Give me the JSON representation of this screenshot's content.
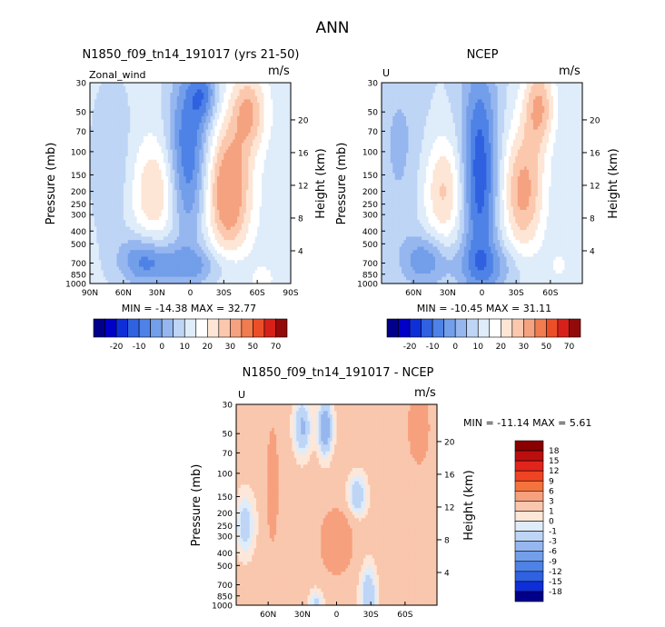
{
  "figure": {
    "main_title": "ANN",
    "colorbar1_ticks": [
      "-20",
      "-10",
      "0",
      "10",
      "20",
      "30",
      "50",
      "70"
    ],
    "colorbar3_ticks": [
      "18",
      "15",
      "12",
      "9",
      "6",
      "3",
      "1",
      "0",
      "-1",
      "-3",
      "-6",
      "-9",
      "-12",
      "-15",
      "-18"
    ]
  },
  "colors": {
    "full_scale": [
      "#00008a",
      "#0000c8",
      "#0e2fd8",
      "#2f61e0",
      "#4f82e6",
      "#739ee9",
      "#96b6ef",
      "#bed5f5",
      "#dfecfa",
      "#ffffff",
      "#fde6d6",
      "#fbc8ae",
      "#f5a280",
      "#f07c50",
      "#ec4f27",
      "#d7201a",
      "#930a0a"
    ],
    "diff_scale": [
      "#8a0000",
      "#bb0f0f",
      "#e2251c",
      "#ef4423",
      "#f4733c",
      "#f7a07e",
      "#f9c7ad",
      "#fde7d9",
      "#dfecfa",
      "#bed5f5",
      "#96b6ef",
      "#739ee9",
      "#4f82e6",
      "#2f61e0",
      "#0e2fd8",
      "#00008a"
    ]
  },
  "chart_data": [
    {
      "type": "heatmap",
      "title": "N1850_f09_tn14_191017 (yrs 21-50)",
      "left_label": "Zonal_wind",
      "units": "m/s",
      "ylabel": "Pressure (mb)",
      "right_label": "Height (km)",
      "x_ticks": [
        "90N",
        "60N",
        "30N",
        "0",
        "30S",
        "60S",
        "90S"
      ],
      "y_ticks": [
        "30",
        "50",
        "70",
        "100",
        "150",
        "200",
        "250",
        "300",
        "400",
        "500",
        "700",
        "850",
        "1000"
      ],
      "height_ticks": [
        "20",
        "16",
        "12",
        "8",
        "4"
      ],
      "stats": "MIN = -14.38   MAX =   32.77",
      "xlim": [
        90,
        -90
      ],
      "ylim": [
        1000,
        30
      ]
    },
    {
      "type": "heatmap",
      "title": "NCEP",
      "left_label": "U",
      "units": "m/s",
      "ylabel": "Pressure (mb)",
      "right_label": "Height (km)",
      "x_ticks": [
        "60N",
        "30N",
        "0",
        "30S",
        "60S"
      ],
      "y_ticks": [
        "30",
        "50",
        "70",
        "100",
        "150",
        "200",
        "250",
        "300",
        "400",
        "500",
        "700",
        "850",
        "1000"
      ],
      "height_ticks": [
        "20",
        "16",
        "12",
        "8",
        "4"
      ],
      "stats": "MIN = -10.45   MAX =   31.11",
      "xlim": [
        90,
        -90
      ],
      "ylim": [
        1000,
        30
      ]
    },
    {
      "type": "heatmap",
      "title": "N1850_f09_tn14_191017 - NCEP",
      "left_label": "U",
      "units": "m/s",
      "ylabel": "Pressure (mb)",
      "right_label": "Height (km)",
      "x_ticks": [
        "60N",
        "30N",
        "0",
        "30S",
        "60S"
      ],
      "y_ticks": [
        "30",
        "50",
        "70",
        "100",
        "150",
        "200",
        "250",
        "300",
        "400",
        "500",
        "700",
        "850",
        "1000"
      ],
      "height_ticks": [
        "20",
        "16",
        "12",
        "8",
        "4"
      ],
      "stats": "MIN = -11.14   MAX =    5.61",
      "xlim": [
        90,
        -90
      ],
      "ylim": [
        1000,
        30
      ]
    }
  ]
}
